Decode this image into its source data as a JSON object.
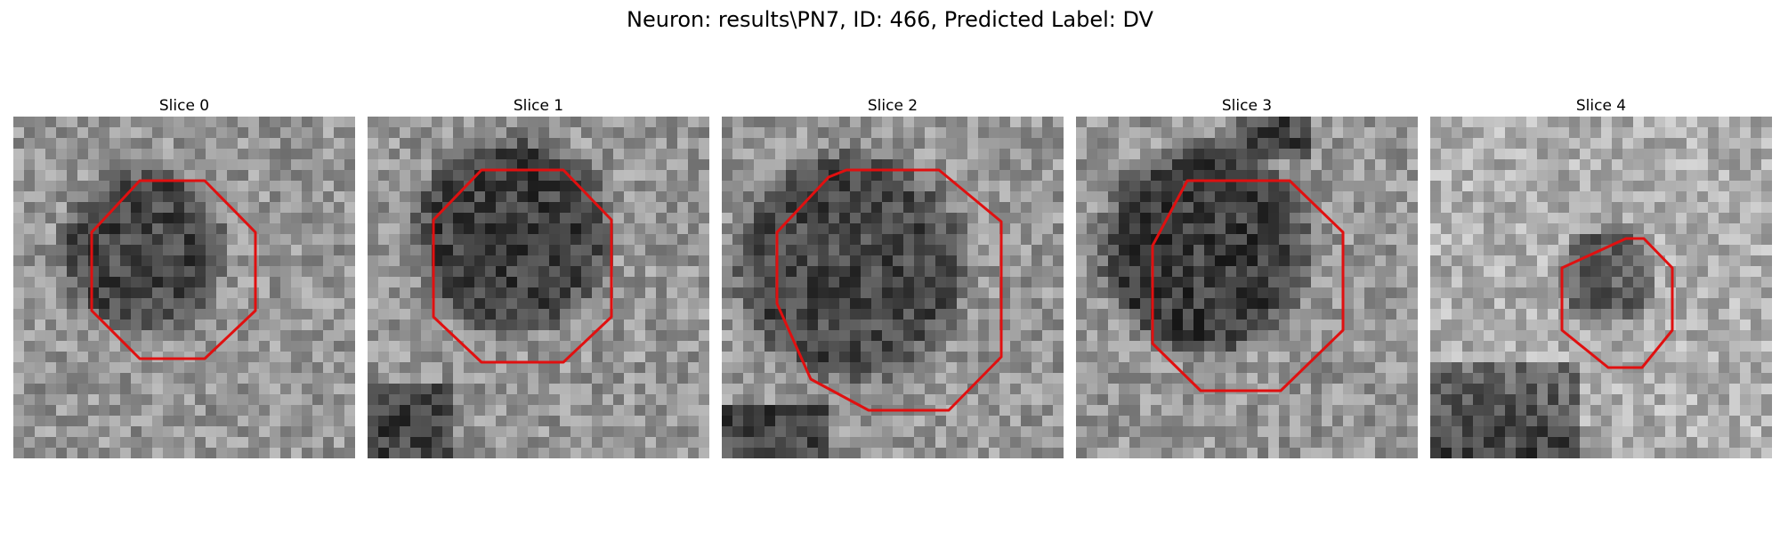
{
  "figure": {
    "title": "Neuron: results\\PN7, ID: 466, Predicted Label: DV"
  },
  "panels": [
    {
      "title": "Slice 0",
      "contour_color": "#e01010"
    },
    {
      "title": "Slice 1",
      "contour_color": "#e01010"
    },
    {
      "title": "Slice 2",
      "contour_color": "#e01010"
    },
    {
      "title": "Slice 3",
      "contour_color": "#e01010"
    },
    {
      "title": "Slice 4",
      "contour_color": "#e01010"
    }
  ],
  "style": {
    "colormap": "grayscale",
    "contour": "red"
  }
}
